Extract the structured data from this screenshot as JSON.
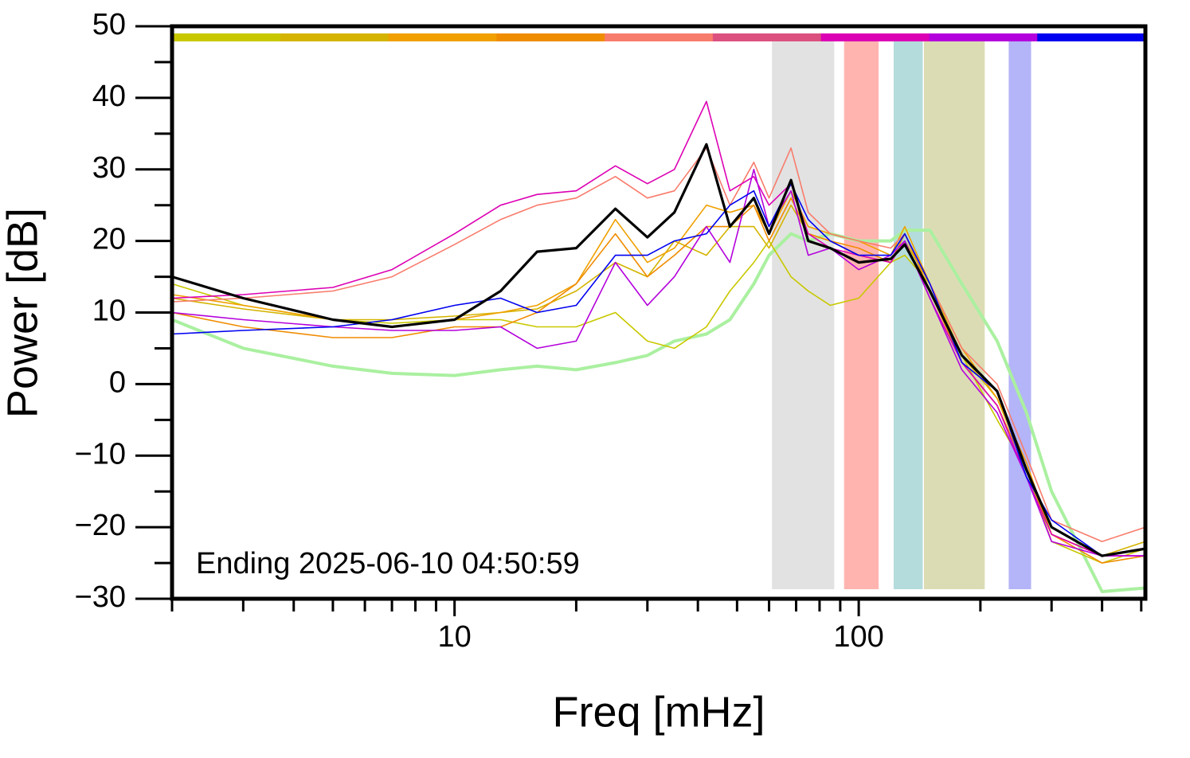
{
  "chart_data": {
    "type": "line",
    "xlabel": "Freq [mHz]",
    "ylabel": "Power [dB]",
    "annotation": "Ending 2025-06-10 04:50:59",
    "xscale": "log",
    "xlim": [
      2,
      512
    ],
    "ylim": [
      -30,
      50
    ],
    "xticks": [
      10,
      100
    ],
    "xminorticks": [
      2,
      3,
      4,
      5,
      6,
      7,
      8,
      9,
      20,
      30,
      40,
      50,
      60,
      70,
      80,
      90,
      200,
      300,
      400,
      500
    ],
    "yticks": [
      {
        "value": -30,
        "label": "−30"
      },
      {
        "value": -20,
        "label": "−20"
      },
      {
        "value": -10,
        "label": "−10"
      },
      0,
      10,
      20,
      30,
      40,
      50
    ],
    "yminorticks": [
      -25,
      -15,
      -5,
      5,
      15,
      25,
      35,
      45
    ],
    "color_bar": [
      "#c8c800",
      "#d4b400",
      "#f0a000",
      "#f08c00",
      "#f87c6c",
      "#dc5080",
      "#dc00b4",
      "#b400dc",
      "#0000f0"
    ],
    "bands": [
      {
        "x": [
          61,
          87
        ],
        "color": "#e2e2e2"
      },
      {
        "x": [
          92,
          112
        ],
        "color": "#ffb4b0"
      },
      {
        "x": [
          122,
          144
        ],
        "color": "#b4dcdc"
      },
      {
        "x": [
          145,
          205
        ],
        "color": "#dcdcb4"
      },
      {
        "x": [
          235,
          267
        ],
        "color": "#b4b4f8"
      }
    ],
    "x": [
      2,
      3,
      5,
      7,
      10,
      13,
      16,
      20,
      25,
      30,
      35,
      42,
      48,
      55,
      60,
      68,
      75,
      85,
      100,
      120,
      130,
      150,
      180,
      220,
      260,
      300,
      400,
      512
    ],
    "series": [
      {
        "color": "#aaf0a0",
        "width": 4,
        "values": [
          9,
          5,
          2.5,
          1.5,
          1.2,
          2,
          2.5,
          2,
          3,
          4,
          6,
          7,
          9,
          14,
          18,
          21,
          20,
          21,
          20,
          20,
          21.5,
          21.5,
          14,
          6,
          -4,
          -15,
          -29,
          -28.5
        ]
      },
      {
        "color": "#c8c800",
        "width": 1.6,
        "values": [
          14,
          11,
          9,
          8.5,
          9,
          9,
          8,
          8,
          10,
          6,
          5,
          8,
          13,
          17,
          20,
          15,
          13,
          11,
          12,
          17,
          18,
          14,
          4,
          -5,
          -12,
          -22,
          -25,
          -23
        ]
      },
      {
        "color": "#d4b400",
        "width": 1.6,
        "values": [
          12,
          10.5,
          9,
          9,
          9.5,
          10,
          10.5,
          13,
          17,
          15,
          20,
          18,
          22,
          22,
          19,
          25,
          21,
          20,
          18,
          17,
          20,
          14,
          4,
          -2,
          -12,
          -21,
          -24,
          -22
        ]
      },
      {
        "color": "#f0a000",
        "width": 1.6,
        "values": [
          12.5,
          11,
          9,
          8,
          9,
          10,
          11,
          14,
          23,
          17,
          19,
          25,
          24,
          25,
          21,
          27,
          22,
          21,
          20,
          18,
          22,
          14,
          5,
          -2,
          -11,
          -21,
          -24,
          -23
        ]
      },
      {
        "color": "#f08c00",
        "width": 1.6,
        "values": [
          10,
          8,
          6.5,
          6.5,
          8,
          8,
          10,
          14,
          21,
          15,
          18,
          22,
          22,
          25,
          20,
          26,
          21,
          20,
          19,
          17,
          21,
          13,
          3,
          -3,
          -12,
          -21,
          -25,
          -24
        ]
      },
      {
        "color": "#f87c6c",
        "width": 1.6,
        "values": [
          11.5,
          12,
          13,
          15,
          19.5,
          23,
          25,
          26,
          29,
          26,
          27,
          33,
          25,
          31,
          26,
          33,
          24,
          21,
          20,
          19,
          21,
          14,
          5,
          0,
          -10,
          -19,
          -22,
          -20
        ]
      },
      {
        "color": "#dc00b4",
        "width": 1.6,
        "values": [
          12,
          12.5,
          13.5,
          16,
          21,
          25,
          26.5,
          27,
          30.5,
          28,
          30,
          39.5,
          27,
          29,
          25,
          28,
          21,
          19,
          18,
          17,
          20,
          12,
          3,
          -3,
          -13,
          -21,
          -24,
          -24
        ]
      },
      {
        "color": "#b400dc",
        "width": 1.6,
        "values": [
          10,
          9,
          8,
          7.5,
          7.5,
          8,
          5,
          6,
          17,
          11,
          15,
          22,
          17,
          30,
          22,
          27,
          18,
          19,
          16,
          18,
          20,
          12,
          2,
          -4,
          -13,
          -22,
          -24,
          -24
        ]
      },
      {
        "color": "#0000f0",
        "width": 1.6,
        "values": [
          7,
          7.5,
          8,
          9,
          11,
          12,
          10,
          11,
          18,
          18,
          20,
          21,
          25,
          27,
          22,
          28,
          23,
          20,
          18,
          18,
          21,
          14,
          3,
          -1,
          -13,
          -19,
          -24,
          -23
        ]
      },
      {
        "color": "#000000",
        "width": 3.2,
        "values": [
          15,
          12,
          9,
          8,
          9,
          13,
          18.5,
          19,
          24.5,
          20.5,
          24,
          33.5,
          22,
          26,
          21,
          28.5,
          20,
          19,
          17,
          17.5,
          19.5,
          13,
          4,
          -1,
          -12,
          -20,
          -24,
          -23
        ]
      }
    ]
  }
}
